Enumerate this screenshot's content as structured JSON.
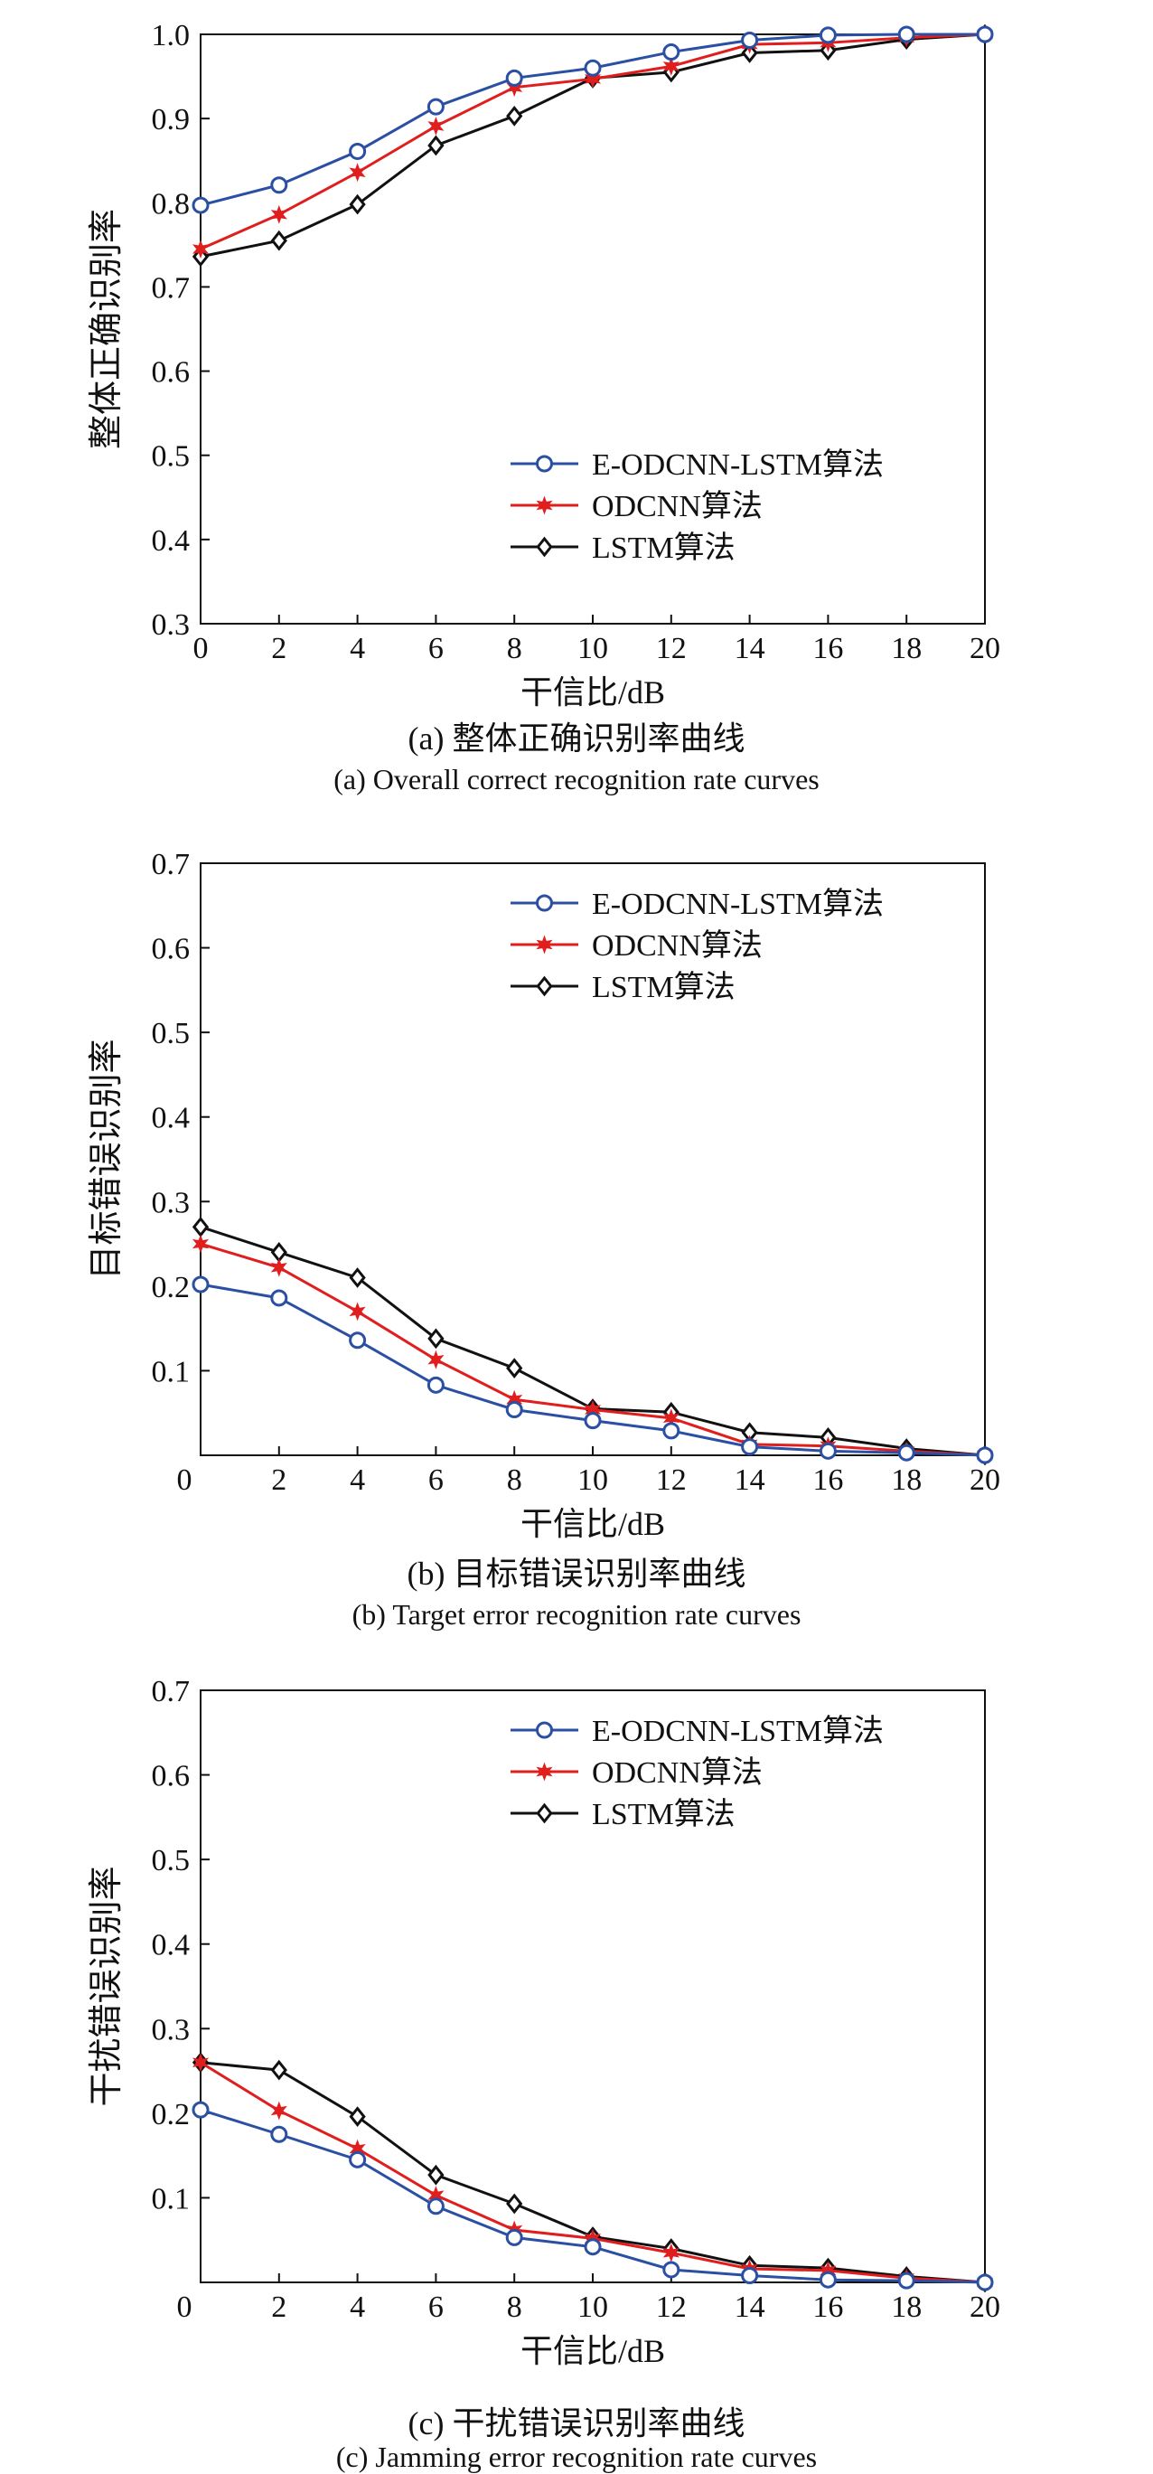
{
  "colors": {
    "E-ODCNN-LSTM": "#2a4fa3",
    "ODCNN": "#e01e1e",
    "LSTM": "#111111",
    "axis": "#111111"
  },
  "chart_data": [
    {
      "type": "line",
      "caption_cn": "(a) 整体正确识别率曲线",
      "caption_en": "(a) Overall correct recognition rate curves",
      "xlabel": "干信比/dB",
      "ylabel": "整体正确识别率",
      "xlim": [
        0,
        20
      ],
      "ylim": [
        0.3,
        1.0
      ],
      "xticks": [
        0,
        2,
        4,
        6,
        8,
        10,
        12,
        14,
        16,
        18,
        20
      ],
      "xtick_labels": [
        "0",
        "2",
        "4",
        "6",
        "8",
        "10",
        "12",
        "14",
        "16",
        "18",
        "20"
      ],
      "yticks": [
        0.3,
        0.4,
        0.5,
        0.6,
        0.7,
        0.8,
        0.9,
        1.0
      ],
      "ytick_labels": [
        "0.3",
        "0.4",
        "0.5",
        "0.6",
        "0.7",
        "0.8",
        "0.9",
        "1.0"
      ],
      "legend_position": "lower-right",
      "x": [
        0,
        2,
        4,
        6,
        8,
        10,
        12,
        14,
        16,
        18,
        20
      ],
      "series": [
        {
          "name": "E-ODCNN-LSTM算法",
          "key": "E-ODCNN-LSTM",
          "marker": "circle",
          "values": [
            0.797,
            0.821,
            0.861,
            0.914,
            0.948,
            0.96,
            0.979,
            0.993,
            0.999,
            1.0,
            1.0
          ]
        },
        {
          "name": "ODCNN算法",
          "key": "ODCNN",
          "marker": "star",
          "values": [
            0.745,
            0.786,
            0.836,
            0.891,
            0.937,
            0.947,
            0.962,
            0.988,
            0.99,
            0.996,
            1.0
          ]
        },
        {
          "name": "LSTM算法",
          "key": "LSTM",
          "marker": "diamond",
          "values": [
            0.736,
            0.755,
            0.798,
            0.868,
            0.903,
            0.948,
            0.955,
            0.978,
            0.981,
            0.994,
            1.0
          ]
        }
      ]
    },
    {
      "type": "line",
      "caption_cn": "(b) 目标错误识别率曲线",
      "caption_en": "(b) Target error recognition rate curves",
      "xlabel": "干信比/dB",
      "ylabel": "目标错误识别率",
      "xlim": [
        0,
        20
      ],
      "ylim": [
        0,
        0.7
      ],
      "xticks": [
        0,
        2,
        4,
        6,
        8,
        10,
        12,
        14,
        16,
        18,
        20
      ],
      "xtick_labels": [
        "0",
        "2",
        "4",
        "6",
        "8",
        "10",
        "12",
        "14",
        "16",
        "18",
        "20"
      ],
      "yticks": [
        0.1,
        0.2,
        0.3,
        0.4,
        0.5,
        0.6,
        0.7
      ],
      "ytick_labels": [
        "0.1",
        "0.2",
        "0.3",
        "0.4",
        "0.5",
        "0.6",
        "0.7"
      ],
      "legend_position": "top-right",
      "x": [
        0,
        2,
        4,
        6,
        8,
        10,
        12,
        14,
        16,
        18,
        20
      ],
      "series": [
        {
          "name": "E-ODCNN-LSTM算法",
          "key": "E-ODCNN-LSTM",
          "marker": "circle",
          "values": [
            0.202,
            0.186,
            0.136,
            0.083,
            0.054,
            0.041,
            0.029,
            0.01,
            0.005,
            0.003,
            0.0
          ]
        },
        {
          "name": "ODCNN算法",
          "key": "ODCNN",
          "marker": "star",
          "values": [
            0.25,
            0.222,
            0.17,
            0.113,
            0.066,
            0.054,
            0.044,
            0.013,
            0.011,
            0.005,
            0.0
          ]
        },
        {
          "name": "LSTM算法",
          "key": "LSTM",
          "marker": "diamond",
          "values": [
            0.27,
            0.24,
            0.21,
            0.138,
            0.103,
            0.055,
            0.051,
            0.027,
            0.021,
            0.008,
            0.0
          ]
        }
      ]
    },
    {
      "type": "line",
      "caption_cn": "(c) 干扰错误识别率曲线",
      "caption_en": "(c) Jamming error recognition rate curves",
      "xlabel": "干信比/dB",
      "ylabel": "干扰错误识别率",
      "xlim": [
        0,
        20
      ],
      "ylim": [
        0,
        0.7
      ],
      "xticks": [
        0,
        2,
        4,
        6,
        8,
        10,
        12,
        14,
        16,
        18,
        20
      ],
      "xtick_labels": [
        "0",
        "2",
        "4",
        "6",
        "8",
        "10",
        "12",
        "14",
        "16",
        "18",
        "20"
      ],
      "yticks": [
        0.1,
        0.2,
        0.3,
        0.4,
        0.5,
        0.6,
        0.7
      ],
      "ytick_labels": [
        "0.1",
        "0.2",
        "0.3",
        "0.4",
        "0.5",
        "0.6",
        "0.7"
      ],
      "legend_position": "top-right",
      "x": [
        0,
        2,
        4,
        6,
        8,
        10,
        12,
        14,
        16,
        18,
        20
      ],
      "series": [
        {
          "name": "E-ODCNN-LSTM算法",
          "key": "E-ODCNN-LSTM",
          "marker": "circle",
          "values": [
            0.204,
            0.175,
            0.145,
            0.09,
            0.053,
            0.042,
            0.015,
            0.008,
            0.003,
            0.002,
            0.0
          ]
        },
        {
          "name": "ODCNN算法",
          "key": "ODCNN",
          "marker": "star",
          "values": [
            0.26,
            0.203,
            0.158,
            0.103,
            0.062,
            0.052,
            0.035,
            0.016,
            0.014,
            0.005,
            0.0
          ]
        },
        {
          "name": "LSTM算法",
          "key": "LSTM",
          "marker": "diamond",
          "values": [
            0.26,
            0.251,
            0.196,
            0.127,
            0.093,
            0.054,
            0.04,
            0.02,
            0.017,
            0.007,
            0.0
          ]
        }
      ]
    }
  ]
}
